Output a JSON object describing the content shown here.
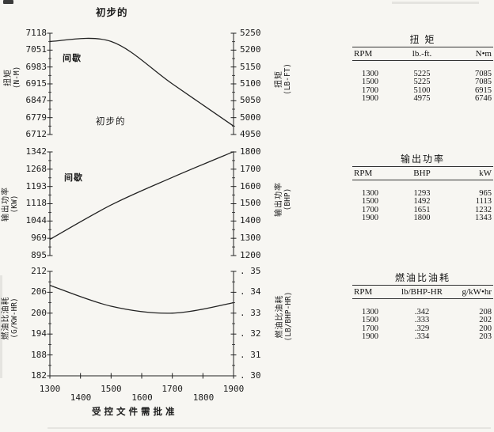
{
  "page": {
    "top_title": "初步的",
    "bottom_note": "受 控 文 件 需 批 准"
  },
  "annotations": {
    "chart1_intermittent": "间歇",
    "chart1_preliminary": "初步的",
    "chart2_intermittent": "间歇"
  },
  "x_axis": {
    "row_a": [
      "1300",
      "1500",
      "1700",
      "1900"
    ],
    "row_b": [
      "1400",
      "1600",
      "1800"
    ],
    "all_ticks": [
      1300,
      1400,
      1500,
      1600,
      1700,
      1800,
      1900
    ]
  },
  "chart_data": [
    {
      "type": "line",
      "title": "扭矩",
      "x": [
        1300,
        1500,
        1700,
        1900
      ],
      "xlim": [
        1300,
        1900
      ],
      "left_axis": {
        "label": "扭矩",
        "unit": "(N-M)",
        "ticks": [
          "7118",
          "7051",
          "6983",
          "6915",
          "6847",
          "6779",
          "6712"
        ],
        "range": [
          6712,
          7118
        ]
      },
      "right_axis": {
        "label": "扭矩",
        "unit": "(LB-FT)",
        "ticks": [
          "5250",
          "5200",
          "5150",
          "5100",
          "5050",
          "5000",
          "4950"
        ],
        "range": [
          4950,
          5250
        ]
      },
      "series": [
        {
          "name": "N•m",
          "axis": "left",
          "values": [
            7085,
            7085,
            6915,
            6746
          ]
        },
        {
          "name": "lb.-ft.",
          "axis": "right",
          "values": [
            5225,
            5225,
            5100,
            4975
          ]
        }
      ]
    },
    {
      "type": "line",
      "title": "输出功率",
      "x": [
        1300,
        1500,
        1700,
        1900
      ],
      "xlim": [
        1300,
        1900
      ],
      "left_axis": {
        "label": "输出功率",
        "unit": "(KW)",
        "ticks": [
          "1342",
          "1268",
          "1193",
          "1118",
          "1044",
          "969",
          "895"
        ],
        "range": [
          895,
          1342
        ]
      },
      "right_axis": {
        "label": "输出功率",
        "unit": "(BHP)",
        "ticks": [
          "1800",
          "1700",
          "1600",
          "1500",
          "1400",
          "1300",
          "1200"
        ],
        "range": [
          1200,
          1800
        ]
      },
      "series": [
        {
          "name": "kW",
          "axis": "left",
          "values": [
            965,
            1113,
            1232,
            1343
          ]
        },
        {
          "name": "BHP",
          "axis": "right",
          "values": [
            1293,
            1492,
            1651,
            1800
          ]
        }
      ]
    },
    {
      "type": "line",
      "title": "燃油比油耗",
      "x": [
        1300,
        1500,
        1700,
        1900
      ],
      "xlim": [
        1300,
        1900
      ],
      "xlabel": "受 控 文 件 需 批 准",
      "left_axis": {
        "label": "燃油比油耗",
        "unit": "(G/KW-HR)",
        "ticks": [
          "212",
          "206",
          "200",
          "194",
          "188",
          "182"
        ],
        "range": [
          182,
          212
        ]
      },
      "right_axis": {
        "label": "燃油比油耗",
        "unit": "(LB/BHP-HR)",
        "ticks": [
          ". 35",
          ". 34",
          ". 33",
          ". 32",
          ". 31",
          ". 30"
        ],
        "range": [
          0.3,
          0.35
        ]
      },
      "series": [
        {
          "name": "g/kW•hr",
          "axis": "left",
          "values": [
            208,
            202,
            200,
            203
          ]
        },
        {
          "name": "lb/BHP-HR",
          "axis": "right",
          "values": [
            0.342,
            0.333,
            0.329,
            0.334
          ]
        }
      ]
    }
  ],
  "tables": [
    {
      "title": "扭 矩",
      "cols": [
        "RPM",
        "lb.-ft.",
        "N•m"
      ],
      "rows": [
        {
          "rpm": "1300",
          "a": "5225",
          "b": "7085"
        },
        {
          "rpm": "1500",
          "a": "5225",
          "b": "7085"
        },
        {
          "rpm": "1700",
          "a": "5100",
          "b": "6915"
        },
        {
          "rpm": "1900",
          "a": "4975",
          "b": "6746"
        }
      ]
    },
    {
      "title": "输出功率",
      "cols": [
        "RPM",
        "BHP",
        "kW"
      ],
      "rows": [
        {
          "rpm": "1300",
          "a": "1293",
          "b": "965"
        },
        {
          "rpm": "1500",
          "a": "1492",
          "b": "1113"
        },
        {
          "rpm": "1700",
          "a": "1651",
          "b": "1232"
        },
        {
          "rpm": "1900",
          "a": "1800",
          "b": "1343"
        }
      ]
    },
    {
      "title": "燃油比油耗",
      "cols": [
        "RPM",
        "lb/BHP-HR",
        "g/kW•hr"
      ],
      "rows": [
        {
          "rpm": "1300",
          "a": ".342",
          "b": "208"
        },
        {
          "rpm": "1500",
          "a": ".333",
          "b": "202"
        },
        {
          "rpm": "1700",
          "a": ".329",
          "b": "200"
        },
        {
          "rpm": "1900",
          "a": ".334",
          "b": "203"
        }
      ]
    }
  ],
  "colors": {
    "ink": "#222222",
    "paper": "#f7f6f2"
  }
}
